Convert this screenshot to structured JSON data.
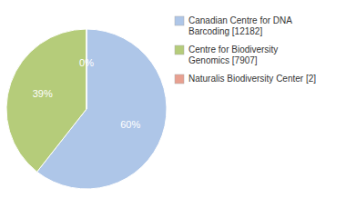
{
  "chart_data": {
    "type": "pie",
    "categories": [
      "Canadian Centre for DNA\nBarcoding [12182]",
      "Centre for Biodiversity\nGenomics [7907]",
      "Naturalis Biodiversity Center [2]"
    ],
    "values": [
      60,
      39,
      0
    ],
    "value_labels": [
      "60%",
      "39%",
      "0%"
    ],
    "colors": [
      "#aec6e8",
      "#b5cc7a",
      "#e8a090"
    ],
    "data_labels": true,
    "legend": "right"
  }
}
